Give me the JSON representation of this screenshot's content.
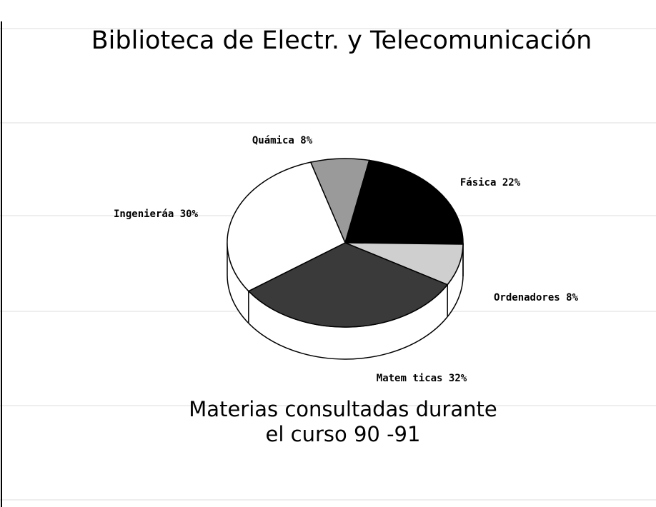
{
  "chart_data": {
    "type": "pie",
    "title": "Biblioteca de Electr. y Telecomunicación",
    "subtitle": [
      "Materias consultadas durante",
      "el curso 90 -91"
    ],
    "categories": [
      "Quámica",
      "Fásica",
      "Ordenadores",
      "Matem ticas",
      "Ingenieráa"
    ],
    "values": [
      8,
      22,
      8,
      32,
      30
    ],
    "value_labels": [
      "8%",
      "22%",
      "8%",
      "32%",
      "30%"
    ],
    "colors": [
      "#9a9a9a",
      "#000000",
      "#cfcfcf",
      "#3a3a3a",
      "#ffffff"
    ]
  }
}
